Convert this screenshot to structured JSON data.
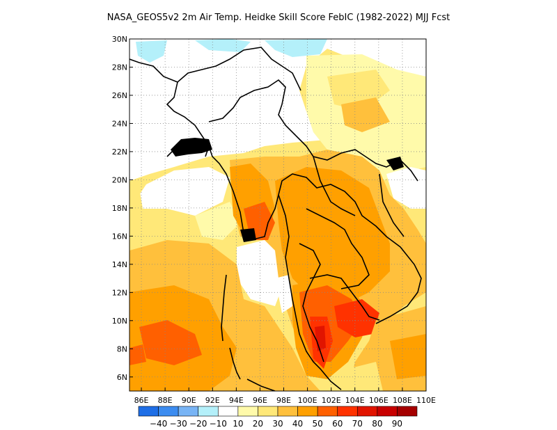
{
  "title": "NASA_GEOS5v2  2m Air Temp. Heidke Skill Score FebIC (1982-2022) MJJ Fcst",
  "axes": {
    "lon_ticks": [
      "86E",
      "88E",
      "90E",
      "92E",
      "94E",
      "96E",
      "98E",
      "100E",
      "102E",
      "104E",
      "106E",
      "108E",
      "110E"
    ],
    "lat_ticks": [
      "30N",
      "28N",
      "26N",
      "24N",
      "22N",
      "20N",
      "18N",
      "16N",
      "14N",
      "12N",
      "10N",
      "8N",
      "6N"
    ],
    "lon_range": [
      85,
      110
    ],
    "lat_range": [
      5,
      30
    ]
  },
  "colorbar": {
    "labels": [
      "-40",
      "-30",
      "-20",
      "-10",
      "10",
      "20",
      "30",
      "40",
      "50",
      "60",
      "70",
      "80",
      "90"
    ],
    "colors": [
      "#1e6ee6",
      "#3c8cf0",
      "#78b4f5",
      "#b4f0fa",
      "#ffffff",
      "#fffaaa",
      "#ffe878",
      "#ffc03c",
      "#ffa000",
      "#ff6000",
      "#ff3200",
      "#e11400",
      "#c80000",
      "#a50000"
    ]
  },
  "legend_semantics": {
    "grid": "dotted",
    "region": "South and Southeast Asia"
  }
}
